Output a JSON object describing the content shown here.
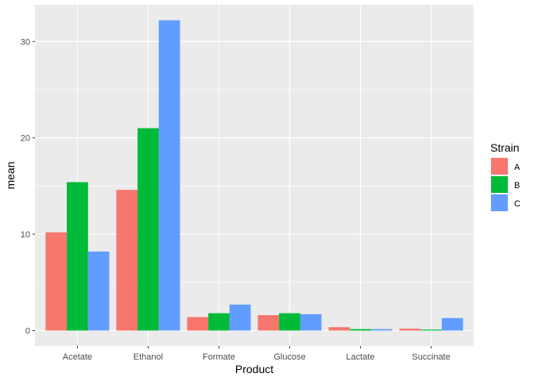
{
  "chart_data": {
    "type": "bar",
    "xlabel": "Product",
    "ylabel": "mean",
    "categories": [
      "Acetate",
      "Ethanol",
      "Formate",
      "Glucose",
      "Lactate",
      "Succinate"
    ],
    "series": [
      {
        "name": "A",
        "color": "#F8766D",
        "values": [
          10.2,
          14.6,
          1.4,
          1.6,
          0.35,
          0.2
        ]
      },
      {
        "name": "B",
        "color": "#00BA38",
        "values": [
          15.4,
          21.0,
          1.8,
          1.8,
          0.15,
          0.1
        ]
      },
      {
        "name": "C",
        "color": "#619CFF",
        "values": [
          8.2,
          32.2,
          2.7,
          1.7,
          0.15,
          1.3
        ]
      }
    ],
    "yticks": [
      0,
      10,
      20,
      30
    ],
    "ylim": [
      -1.61,
      33.81
    ],
    "grid": true,
    "legend": {
      "title": "Strain",
      "position": "right"
    },
    "panel_bg": "#EBEBEB",
    "grid_color": "#FFFFFF"
  }
}
